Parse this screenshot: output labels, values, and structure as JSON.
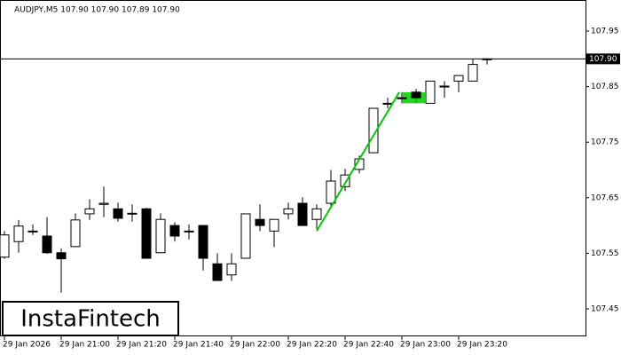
{
  "chart_data": {
    "type": "candlestick",
    "title": "AUDJPY,M5  107.90 107.90 107.89 107.90",
    "watermark": "InstaFintech",
    "categories": [
      "29 Jan 2026",
      null,
      null,
      null,
      "29 Jan 21:00",
      null,
      null,
      null,
      "29 Jan 21:20",
      null,
      null,
      null,
      "29 Jan 21:40",
      null,
      null,
      null,
      "29 Jan 22:00",
      null,
      null,
      null,
      "29 Jan 22:20",
      null,
      null,
      null,
      "29 Jan 22:40",
      null,
      null,
      null,
      "29 Jan 23:00",
      null,
      null,
      null,
      "29 Jan 23:20",
      null,
      null
    ],
    "open": [
      107.543,
      107.571,
      107.59,
      107.581,
      107.551,
      107.562,
      107.621,
      107.638,
      107.63,
      107.622,
      107.63,
      107.551,
      107.6,
      107.59,
      107.6,
      107.531,
      107.511,
      107.541,
      107.611,
      107.59,
      107.621,
      107.64,
      107.611,
      107.64,
      107.67,
      107.701,
      107.731,
      107.82,
      107.83,
      107.84,
      107.82,
      107.851,
      107.86,
      107.86,
      107.9
    ],
    "high": [
      107.59,
      107.61,
      107.602,
      107.615,
      107.559,
      107.622,
      107.647,
      107.67,
      107.641,
      107.638,
      107.632,
      107.622,
      107.606,
      107.602,
      107.6,
      107.55,
      107.55,
      107.621,
      107.638,
      107.611,
      107.641,
      107.651,
      107.638,
      107.7,
      107.702,
      107.726,
      107.811,
      107.83,
      107.84,
      107.846,
      107.86,
      107.86,
      107.87,
      107.9,
      107.9
    ],
    "low": [
      107.54,
      107.551,
      107.583,
      107.549,
      107.479,
      107.562,
      107.61,
      107.615,
      107.607,
      107.607,
      107.54,
      107.55,
      107.571,
      107.575,
      107.519,
      107.5,
      107.5,
      107.54,
      107.59,
      107.561,
      107.611,
      107.6,
      107.594,
      107.63,
      107.662,
      107.694,
      107.731,
      107.811,
      107.82,
      107.82,
      107.82,
      107.83,
      107.84,
      107.86,
      107.89
    ],
    "close": [
      107.583,
      107.599,
      107.59,
      107.551,
      107.54,
      107.61,
      107.63,
      107.64,
      107.613,
      107.622,
      107.541,
      107.611,
      107.581,
      107.59,
      107.541,
      107.501,
      107.531,
      107.621,
      107.6,
      107.611,
      107.63,
      107.6,
      107.63,
      107.68,
      107.691,
      107.72,
      107.811,
      107.82,
      107.83,
      107.83,
      107.86,
      107.851,
      107.87,
      107.89,
      107.9
    ],
    "up_color": "#ffffff",
    "down_color": "#000000",
    "ylim": [
      107.402,
      108.006
    ],
    "yticks": [
      107.45,
      107.55,
      107.65,
      107.75,
      107.85,
      107.95
    ],
    "current_price": {
      "value": 107.9,
      "label": "107.90"
    },
    "pattern": {
      "color": "#00cc00",
      "start": 22,
      "end": 28,
      "from": 107.59,
      "to": 107.84,
      "box_end": 29,
      "box_low": 107.82
    }
  }
}
